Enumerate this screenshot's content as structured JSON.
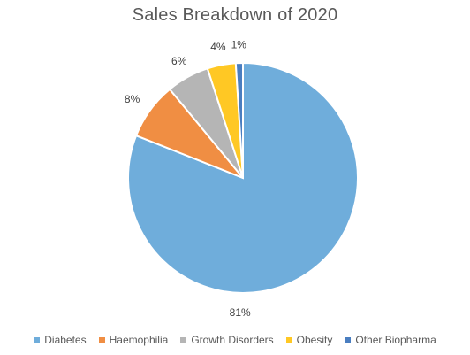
{
  "chart_data": {
    "type": "pie",
    "title": "Sales Breakdown of 2020",
    "categories": [
      "Diabetes",
      "Haemophilia",
      "Growth Disorders",
      "Obesity",
      "Other Biopharma"
    ],
    "values": [
      81,
      8,
      6,
      4,
      1
    ],
    "labels": [
      "81%",
      "8%",
      "6%",
      "4%",
      "1%"
    ],
    "colors": [
      "#6FADDB",
      "#F08E43",
      "#B5B5B5",
      "#FFC824",
      "#4A7EC0"
    ],
    "legend_position": "bottom",
    "start_angle": "12 o'clock",
    "direction": "clockwise"
  }
}
